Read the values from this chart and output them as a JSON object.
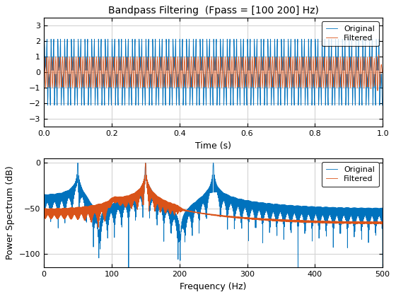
{
  "title": "Bandpass Filtering  (Fpass = [100 200] Hz)",
  "xlabel_time": "Time (s)",
  "xlabel_freq": "Frequency (Hz)",
  "ylabel_freq": "Power Spectrum (dB)",
  "legend_original": "Original",
  "legend_filtered": "Filtered",
  "fs": 1000,
  "duration": 1.0,
  "fpass_low": 100,
  "fpass_high": 200,
  "freqs_in_signal": [
    50,
    150,
    250
  ],
  "color_original": "#0072BD",
  "color_filtered": "#D95319",
  "time_xlim": [
    0,
    1
  ],
  "time_ylim": [
    -3.5,
    3.5
  ],
  "freq_xlim": [
    0,
    500
  ],
  "freq_ylim": [
    -115,
    5
  ],
  "freq_yticks": [
    0,
    -50,
    -100
  ],
  "time_xticks": [
    0,
    0.2,
    0.4,
    0.6,
    0.8,
    1.0
  ],
  "freq_xticks": [
    0,
    100,
    200,
    300,
    400,
    500
  ],
  "bg_color": "#FFFFFF",
  "grid_color": "#D3D3D3"
}
